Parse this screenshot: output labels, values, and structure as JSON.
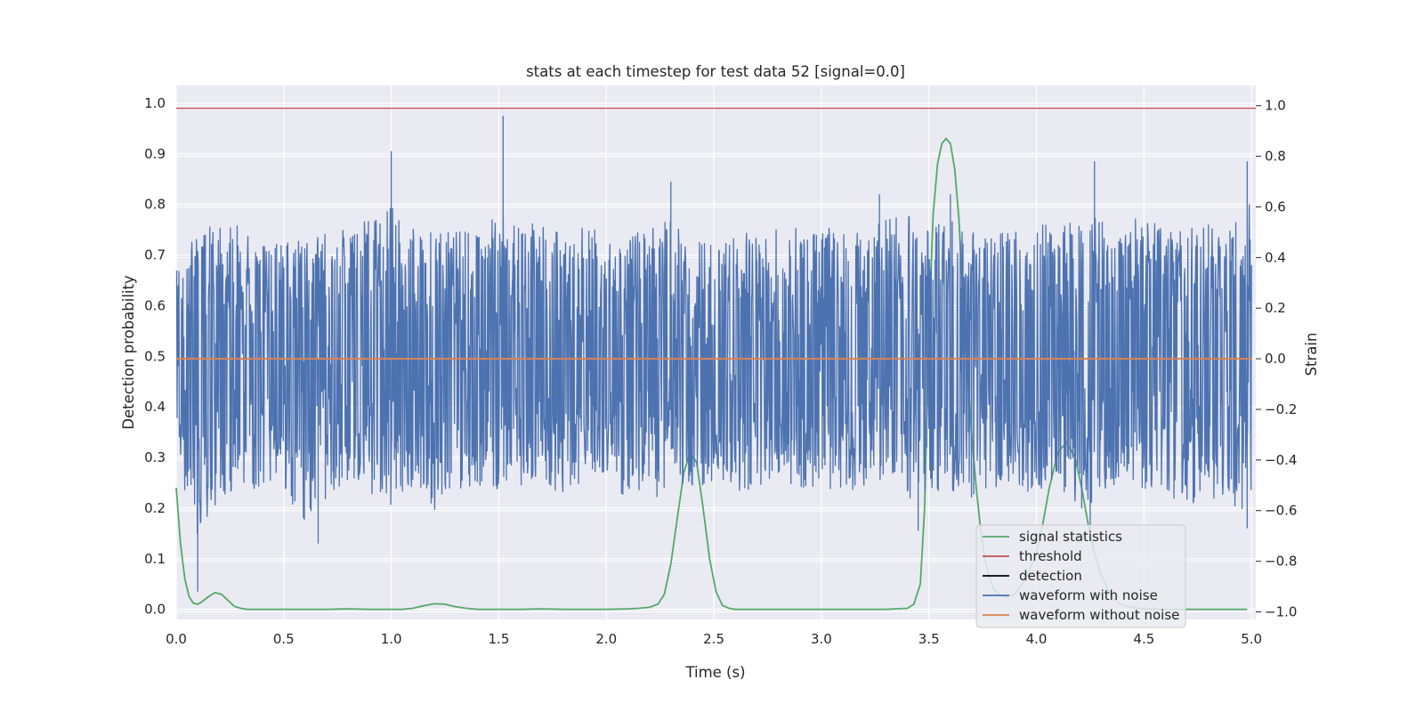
{
  "chart_data": {
    "type": "line",
    "title": "stats at each timestep for test data 52 [signal=0.0]",
    "xlabel": "Time (s)",
    "ylabel": "Detection probability",
    "y2label": "Strain",
    "xlim": [
      0.0,
      5.02
    ],
    "ylim": [
      -0.02,
      1.035
    ],
    "y2lim": [
      -1.03,
      1.08
    ],
    "xticks": [
      "0.0",
      "0.5",
      "1.0",
      "1.5",
      "2.0",
      "2.5",
      "3.0",
      "3.5",
      "4.0",
      "4.5",
      "5.0"
    ],
    "yticks": [
      "0.0",
      "0.1",
      "0.2",
      "0.3",
      "0.4",
      "0.5",
      "0.6",
      "0.7",
      "0.8",
      "0.9",
      "1.0"
    ],
    "y2ticks": [
      "−1.0",
      "−0.8",
      "−0.6",
      "−0.4",
      "−0.2",
      "0.0",
      "0.2",
      "0.4",
      "0.6",
      "0.8",
      "1.0"
    ],
    "grid": true,
    "legend_position": "lower-right",
    "series": [
      {
        "name": "signal statistics",
        "axis": "left",
        "color": "#55a868",
        "x": [
          0.0,
          0.02,
          0.04,
          0.06,
          0.08,
          0.1,
          0.12,
          0.15,
          0.18,
          0.21,
          0.24,
          0.27,
          0.3,
          0.33,
          0.36,
          0.4,
          0.5,
          0.6,
          0.7,
          0.8,
          0.9,
          1.0,
          1.05,
          1.1,
          1.15,
          1.2,
          1.25,
          1.3,
          1.35,
          1.4,
          1.5,
          1.6,
          1.7,
          1.8,
          1.9,
          2.0,
          2.1,
          2.15,
          2.2,
          2.24,
          2.27,
          2.3,
          2.33,
          2.36,
          2.39,
          2.42,
          2.45,
          2.48,
          2.51,
          2.54,
          2.57,
          2.6,
          2.7,
          2.8,
          2.9,
          3.0,
          3.1,
          3.2,
          3.3,
          3.4,
          3.43,
          3.46,
          3.48,
          3.5,
          3.52,
          3.54,
          3.56,
          3.58,
          3.6,
          3.62,
          3.64,
          3.66,
          3.68,
          3.7,
          3.72,
          3.74,
          3.76,
          3.78,
          3.8,
          3.83,
          3.86,
          3.9,
          3.95,
          4.0,
          4.03,
          4.06,
          4.1,
          4.14,
          4.18,
          4.21,
          4.24,
          4.27,
          4.3,
          4.33,
          4.36,
          4.4,
          4.45,
          4.5,
          4.6,
          4.7,
          4.8,
          4.9,
          4.98
        ],
        "y": [
          0.24,
          0.13,
          0.06,
          0.025,
          0.012,
          0.01,
          0.015,
          0.025,
          0.033,
          0.03,
          0.018,
          0.006,
          0.002,
          0.0,
          0.0,
          0.0,
          0.0,
          0.0,
          0.0,
          0.001,
          0.0,
          0.0,
          0.0,
          0.002,
          0.007,
          0.011,
          0.01,
          0.005,
          0.002,
          0.0,
          0.0,
          0.0,
          0.001,
          0.0,
          0.0,
          0.0,
          0.001,
          0.002,
          0.004,
          0.01,
          0.03,
          0.09,
          0.18,
          0.27,
          0.31,
          0.29,
          0.2,
          0.1,
          0.035,
          0.008,
          0.002,
          0.0,
          0.0,
          0.0,
          0.0,
          0.0,
          0.0,
          0.0,
          0.0,
          0.002,
          0.01,
          0.05,
          0.2,
          0.56,
          0.78,
          0.88,
          0.92,
          0.93,
          0.92,
          0.87,
          0.77,
          0.6,
          0.46,
          0.34,
          0.24,
          0.16,
          0.1,
          0.065,
          0.04,
          0.028,
          0.024,
          0.03,
          0.06,
          0.11,
          0.17,
          0.24,
          0.31,
          0.33,
          0.3,
          0.24,
          0.17,
          0.11,
          0.07,
          0.04,
          0.02,
          0.008,
          0.003,
          0.001,
          0.0,
          0.0,
          0.0,
          0.0,
          0.0
        ]
      },
      {
        "name": "threshold",
        "axis": "left",
        "color": "#c44e52",
        "value": 0.99
      },
      {
        "name": "detection",
        "axis": "left",
        "color": "#000000",
        "values": []
      },
      {
        "name": "waveform with noise",
        "axis": "right",
        "color": "#4c72b0",
        "x": [
          0.0,
          0.1,
          0.2,
          0.3,
          0.4,
          0.5,
          0.6,
          0.7,
          0.8,
          0.9,
          1.0,
          1.1,
          1.2,
          1.3,
          1.4,
          1.5,
          1.6,
          1.7,
          1.8,
          1.9,
          2.0,
          2.1,
          2.2,
          2.3,
          2.4,
          2.5,
          2.6,
          2.7,
          2.8,
          2.9,
          3.0,
          3.1,
          3.2,
          3.3,
          3.4,
          3.5,
          3.6,
          3.7,
          3.8,
          3.9,
          4.0,
          4.1,
          4.2,
          4.3,
          4.4,
          4.5,
          4.6,
          4.7,
          4.8,
          4.9,
          5.0
        ],
        "upper": [
          0.38,
          0.5,
          0.55,
          0.52,
          0.45,
          0.48,
          0.46,
          0.5,
          0.52,
          0.55,
          0.6,
          0.58,
          0.5,
          0.55,
          0.5,
          0.58,
          0.52,
          0.55,
          0.48,
          0.52,
          0.5,
          0.48,
          0.55,
          0.55,
          0.45,
          0.5,
          0.52,
          0.48,
          0.56,
          0.52,
          0.5,
          0.55,
          0.5,
          0.55,
          0.58,
          0.52,
          0.55,
          0.5,
          0.48,
          0.52,
          0.56,
          0.5,
          0.58,
          0.55,
          0.52,
          0.58,
          0.5,
          0.52,
          0.55,
          0.52,
          0.62
        ],
        "lower": [
          -0.4,
          -0.7,
          -0.55,
          -0.5,
          -0.55,
          -0.5,
          -0.68,
          -0.55,
          -0.5,
          -0.55,
          -0.6,
          -0.5,
          -0.6,
          -0.55,
          -0.5,
          -0.55,
          -0.5,
          -0.48,
          -0.55,
          -0.5,
          -0.5,
          -0.55,
          -0.58,
          -0.52,
          -0.5,
          -0.5,
          -0.55,
          -0.5,
          -0.48,
          -0.52,
          -0.5,
          -0.55,
          -0.5,
          -0.52,
          -0.55,
          -0.58,
          -0.52,
          -0.55,
          -0.52,
          -0.5,
          -0.55,
          -0.52,
          -0.6,
          -0.55,
          -0.5,
          -0.55,
          -0.52,
          -0.6,
          -0.55,
          -0.58,
          -0.62
        ],
        "spikes": [
          [
            0.1,
            -0.92
          ],
          [
            1.0,
            0.82
          ],
          [
            1.52,
            0.96
          ],
          [
            1.25,
            -0.5
          ],
          [
            2.3,
            0.7
          ],
          [
            2.4,
            -0.5
          ],
          [
            3.27,
            0.65
          ],
          [
            3.6,
            0.65
          ],
          [
            4.27,
            0.78
          ],
          [
            4.25,
            -0.72
          ],
          [
            4.98,
            0.78
          ],
          [
            4.98,
            -0.67
          ],
          [
            0.66,
            -0.73
          ],
          [
            3.45,
            -0.68
          ]
        ]
      },
      {
        "name": "waveform without noise",
        "axis": "right",
        "color": "#dd8452",
        "value": 0.0
      }
    ]
  }
}
